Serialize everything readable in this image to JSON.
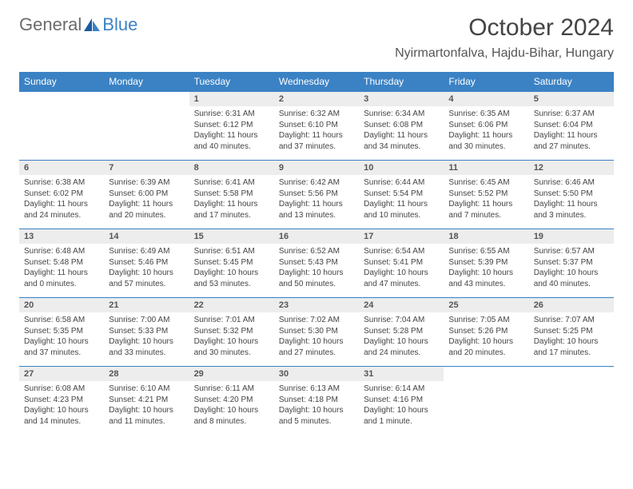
{
  "logo": {
    "general": "General",
    "blue": "Blue"
  },
  "title": "October 2024",
  "location": "Nyirmartonfalva, Hajdu-Bihar, Hungary",
  "colors": {
    "header_bg": "#3b82c4",
    "header_text": "#ffffff",
    "daynum_bg": "#ededed",
    "border": "#3b82c4"
  },
  "dayNames": [
    "Sunday",
    "Monday",
    "Tuesday",
    "Wednesday",
    "Thursday",
    "Friday",
    "Saturday"
  ],
  "weeks": [
    {
      "nums": [
        "",
        "",
        "1",
        "2",
        "3",
        "4",
        "5"
      ],
      "cells": [
        null,
        null,
        {
          "sr": "Sunrise: 6:31 AM",
          "ss": "Sunset: 6:12 PM",
          "dl": "Daylight: 11 hours and 40 minutes."
        },
        {
          "sr": "Sunrise: 6:32 AM",
          "ss": "Sunset: 6:10 PM",
          "dl": "Daylight: 11 hours and 37 minutes."
        },
        {
          "sr": "Sunrise: 6:34 AM",
          "ss": "Sunset: 6:08 PM",
          "dl": "Daylight: 11 hours and 34 minutes."
        },
        {
          "sr": "Sunrise: 6:35 AM",
          "ss": "Sunset: 6:06 PM",
          "dl": "Daylight: 11 hours and 30 minutes."
        },
        {
          "sr": "Sunrise: 6:37 AM",
          "ss": "Sunset: 6:04 PM",
          "dl": "Daylight: 11 hours and 27 minutes."
        }
      ]
    },
    {
      "nums": [
        "6",
        "7",
        "8",
        "9",
        "10",
        "11",
        "12"
      ],
      "cells": [
        {
          "sr": "Sunrise: 6:38 AM",
          "ss": "Sunset: 6:02 PM",
          "dl": "Daylight: 11 hours and 24 minutes."
        },
        {
          "sr": "Sunrise: 6:39 AM",
          "ss": "Sunset: 6:00 PM",
          "dl": "Daylight: 11 hours and 20 minutes."
        },
        {
          "sr": "Sunrise: 6:41 AM",
          "ss": "Sunset: 5:58 PM",
          "dl": "Daylight: 11 hours and 17 minutes."
        },
        {
          "sr": "Sunrise: 6:42 AM",
          "ss": "Sunset: 5:56 PM",
          "dl": "Daylight: 11 hours and 13 minutes."
        },
        {
          "sr": "Sunrise: 6:44 AM",
          "ss": "Sunset: 5:54 PM",
          "dl": "Daylight: 11 hours and 10 minutes."
        },
        {
          "sr": "Sunrise: 6:45 AM",
          "ss": "Sunset: 5:52 PM",
          "dl": "Daylight: 11 hours and 7 minutes."
        },
        {
          "sr": "Sunrise: 6:46 AM",
          "ss": "Sunset: 5:50 PM",
          "dl": "Daylight: 11 hours and 3 minutes."
        }
      ]
    },
    {
      "nums": [
        "13",
        "14",
        "15",
        "16",
        "17",
        "18",
        "19"
      ],
      "cells": [
        {
          "sr": "Sunrise: 6:48 AM",
          "ss": "Sunset: 5:48 PM",
          "dl": "Daylight: 11 hours and 0 minutes."
        },
        {
          "sr": "Sunrise: 6:49 AM",
          "ss": "Sunset: 5:46 PM",
          "dl": "Daylight: 10 hours and 57 minutes."
        },
        {
          "sr": "Sunrise: 6:51 AM",
          "ss": "Sunset: 5:45 PM",
          "dl": "Daylight: 10 hours and 53 minutes."
        },
        {
          "sr": "Sunrise: 6:52 AM",
          "ss": "Sunset: 5:43 PM",
          "dl": "Daylight: 10 hours and 50 minutes."
        },
        {
          "sr": "Sunrise: 6:54 AM",
          "ss": "Sunset: 5:41 PM",
          "dl": "Daylight: 10 hours and 47 minutes."
        },
        {
          "sr": "Sunrise: 6:55 AM",
          "ss": "Sunset: 5:39 PM",
          "dl": "Daylight: 10 hours and 43 minutes."
        },
        {
          "sr": "Sunrise: 6:57 AM",
          "ss": "Sunset: 5:37 PM",
          "dl": "Daylight: 10 hours and 40 minutes."
        }
      ]
    },
    {
      "nums": [
        "20",
        "21",
        "22",
        "23",
        "24",
        "25",
        "26"
      ],
      "cells": [
        {
          "sr": "Sunrise: 6:58 AM",
          "ss": "Sunset: 5:35 PM",
          "dl": "Daylight: 10 hours and 37 minutes."
        },
        {
          "sr": "Sunrise: 7:00 AM",
          "ss": "Sunset: 5:33 PM",
          "dl": "Daylight: 10 hours and 33 minutes."
        },
        {
          "sr": "Sunrise: 7:01 AM",
          "ss": "Sunset: 5:32 PM",
          "dl": "Daylight: 10 hours and 30 minutes."
        },
        {
          "sr": "Sunrise: 7:02 AM",
          "ss": "Sunset: 5:30 PM",
          "dl": "Daylight: 10 hours and 27 minutes."
        },
        {
          "sr": "Sunrise: 7:04 AM",
          "ss": "Sunset: 5:28 PM",
          "dl": "Daylight: 10 hours and 24 minutes."
        },
        {
          "sr": "Sunrise: 7:05 AM",
          "ss": "Sunset: 5:26 PM",
          "dl": "Daylight: 10 hours and 20 minutes."
        },
        {
          "sr": "Sunrise: 7:07 AM",
          "ss": "Sunset: 5:25 PM",
          "dl": "Daylight: 10 hours and 17 minutes."
        }
      ]
    },
    {
      "nums": [
        "27",
        "28",
        "29",
        "30",
        "31",
        "",
        ""
      ],
      "cells": [
        {
          "sr": "Sunrise: 6:08 AM",
          "ss": "Sunset: 4:23 PM",
          "dl": "Daylight: 10 hours and 14 minutes."
        },
        {
          "sr": "Sunrise: 6:10 AM",
          "ss": "Sunset: 4:21 PM",
          "dl": "Daylight: 10 hours and 11 minutes."
        },
        {
          "sr": "Sunrise: 6:11 AM",
          "ss": "Sunset: 4:20 PM",
          "dl": "Daylight: 10 hours and 8 minutes."
        },
        {
          "sr": "Sunrise: 6:13 AM",
          "ss": "Sunset: 4:18 PM",
          "dl": "Daylight: 10 hours and 5 minutes."
        },
        {
          "sr": "Sunrise: 6:14 AM",
          "ss": "Sunset: 4:16 PM",
          "dl": "Daylight: 10 hours and 1 minute."
        },
        null,
        null
      ]
    }
  ]
}
